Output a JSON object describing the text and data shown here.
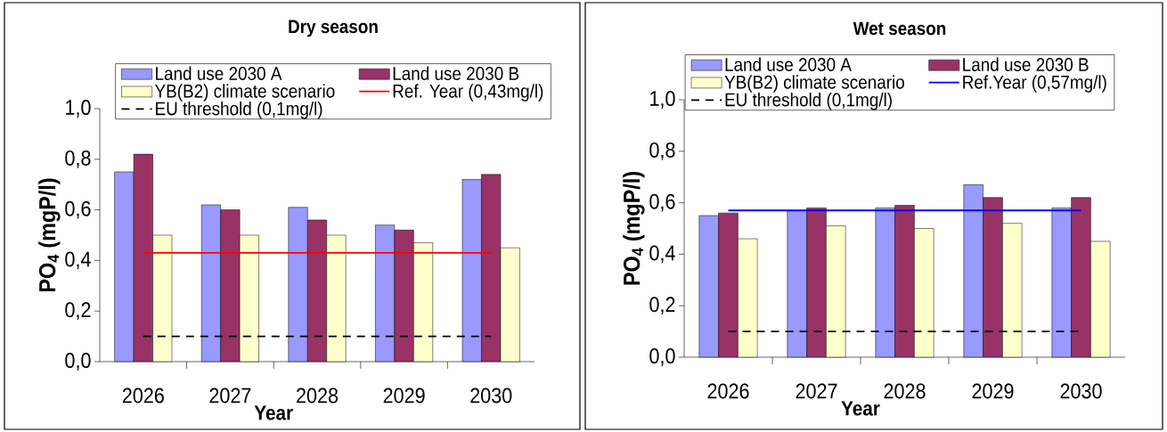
{
  "chart_data": [
    {
      "type": "bar",
      "title": "Dry season",
      "xlabel": "Year",
      "ylabel": "PO$_{4}$ (mgP/l)",
      "categories": [
        "2026",
        "2027",
        "2028",
        "2029",
        "2030"
      ],
      "series": [
        {
          "name": "Land use 2030 A",
          "color": "#9999ff",
          "values": [
            0.75,
            0.62,
            0.61,
            0.54,
            0.72
          ]
        },
        {
          "name": "Land use 2030 B",
          "color": "#993366",
          "values": [
            0.82,
            0.6,
            0.56,
            0.52,
            0.74
          ]
        },
        {
          "name": "YB(B2) climate scenario",
          "color": "#ffffcc",
          "values": [
            0.5,
            0.5,
            0.5,
            0.47,
            0.45
          ]
        },
        {
          "name": "Ref. Year (0,43mg/l)",
          "type": "line",
          "color": "#ff0000",
          "line_style": "solid",
          "values": [
            0.43,
            0.43,
            0.43,
            0.43,
            0.43
          ]
        },
        {
          "name": "EU threshold (0,1mg/l)",
          "type": "line",
          "color": "#000000",
          "line_style": "dashed",
          "values": [
            0.1,
            0.1,
            0.1,
            0.1,
            0.1
          ]
        }
      ],
      "ylim": [
        0,
        1.0
      ],
      "yticks": [
        {
          "value": 0,
          "label": "0,0"
        },
        {
          "value": 0.2,
          "label": "0,2"
        },
        {
          "value": 0.4,
          "label": "0,4"
        },
        {
          "value": 0.6,
          "label": "0,6"
        },
        {
          "value": 0.8,
          "label": "0,8"
        },
        {
          "value": 1.0,
          "label": "1,0"
        }
      ],
      "legend": "top",
      "grid": false
    },
    {
      "type": "bar",
      "title": "Wet season",
      "xlabel": "Year",
      "ylabel": "PO$_{4}$ (mgP/l)",
      "categories": [
        "2026",
        "2027",
        "2028",
        "2029",
        "2030"
      ],
      "series": [
        {
          "name": "Land use 2030 A",
          "color": "#9999ff",
          "values": [
            0.55,
            0.57,
            0.58,
            0.67,
            0.58
          ]
        },
        {
          "name": "Land use 2030 B",
          "color": "#993366",
          "values": [
            0.56,
            0.58,
            0.59,
            0.62,
            0.62
          ]
        },
        {
          "name": "YB(B2) climate scenario",
          "color": "#ffffcc",
          "values": [
            0.46,
            0.51,
            0.5,
            0.52,
            0.45
          ]
        },
        {
          "name": "Ref.Year (0,57mg/l)",
          "type": "line",
          "color": "#0000ff",
          "line_style": "solid",
          "values": [
            0.57,
            0.57,
            0.57,
            0.57,
            0.57
          ]
        },
        {
          "name": "EU threshold (0,1mg/l)",
          "type": "line",
          "color": "#000000",
          "line_style": "dashed",
          "values": [
            0.1,
            0.1,
            0.1,
            0.1,
            0.1
          ]
        }
      ],
      "ylim": [
        0,
        1.0
      ],
      "yticks": [
        {
          "value": 0,
          "label": "0,0"
        },
        {
          "value": 0.2,
          "label": "0,2"
        },
        {
          "value": 0.4,
          "label": "0,4"
        },
        {
          "value": 0.6,
          "label": "0,6"
        },
        {
          "value": 0.8,
          "label": "0,8"
        },
        {
          "value": 1.0,
          "label": "1,0"
        }
      ],
      "legend": "top",
      "grid": false
    }
  ]
}
